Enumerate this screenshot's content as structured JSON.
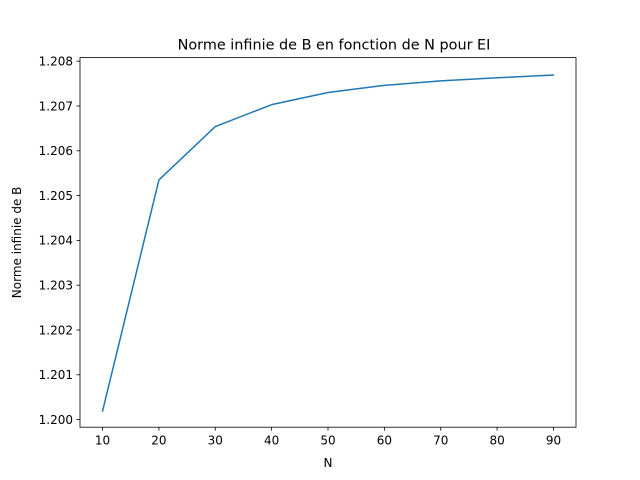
{
  "chart_data": {
    "type": "line",
    "title": "Norme infinie de B en fonction de N pour EI",
    "xlabel": "N",
    "ylabel": "Norme infinie de B",
    "xlim": [
      6,
      94
    ],
    "ylim": [
      1.19983,
      1.20808
    ],
    "x_ticks": [
      10,
      20,
      30,
      40,
      50,
      60,
      70,
      80,
      90
    ],
    "y_ticks": [
      1.2,
      1.201,
      1.202,
      1.203,
      1.204,
      1.205,
      1.206,
      1.207,
      1.208
    ],
    "grid": false,
    "series": [
      {
        "color": "#1f77b4",
        "x": [
          10,
          20,
          30,
          40,
          50,
          60,
          70,
          80,
          90
        ],
        "y": [
          1.20019,
          1.20535,
          1.20654,
          1.20703,
          1.2073,
          1.20746,
          1.20756,
          1.20763,
          1.20769
        ]
      }
    ]
  }
}
